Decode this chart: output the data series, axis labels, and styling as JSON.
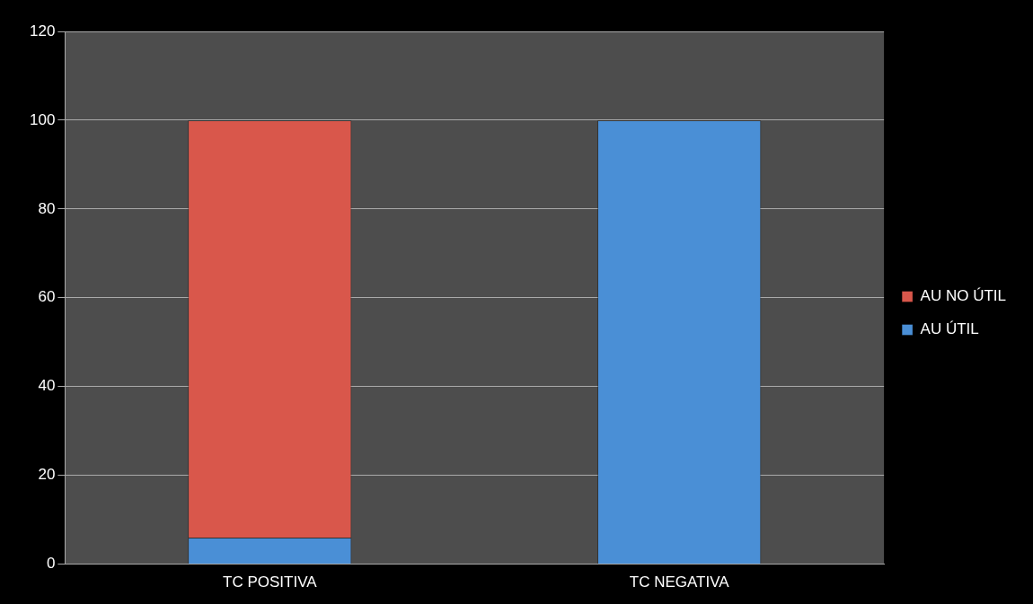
{
  "chart_data": {
    "type": "bar",
    "stacked": true,
    "categories": [
      "TC POSITIVA",
      "TC NEGATIVA"
    ],
    "series": [
      {
        "name": "AU ÚTIL",
        "color": "#4a8fd6",
        "values": [
          6,
          100
        ]
      },
      {
        "name": "AU NO ÚTIL",
        "color": "#d9574b",
        "values": [
          94,
          0
        ]
      }
    ],
    "ylim": [
      0,
      120
    ],
    "yticks": [
      0,
      20,
      40,
      60,
      80,
      100,
      120
    ],
    "grid": "y",
    "legend": "right"
  }
}
